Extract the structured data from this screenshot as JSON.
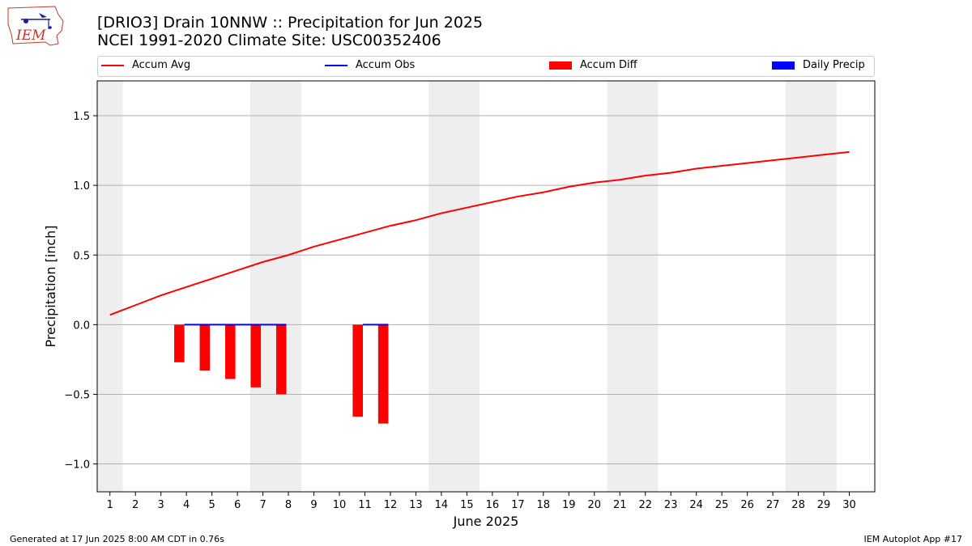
{
  "header": {
    "title_line1": "[DRIO3] Drain 10NNW :: Precipitation for Jun 2025",
    "title_line2": "NCEI 1991-2020 Climate Site: USC00352406"
  },
  "logo": {
    "text": "IEM",
    "icon": "iem-iowa-logo-icon"
  },
  "footer": {
    "generated": "Generated at 17 Jun 2025 8:00 AM CDT in 0.76s",
    "app": "IEM Autoplot App #17"
  },
  "colors": {
    "accum_avg": "#ff0000",
    "accum_obs": "#0000ff",
    "accum_diff": "#ff0000",
    "daily_precip": "#0000ff",
    "weekend_band": "#eeeeee",
    "grid": "#b0b0b0"
  },
  "chart_data": {
    "type": "line",
    "xlabel": "June 2025",
    "ylabel": "Precipitation [inch]",
    "ylim": [
      -1.2,
      1.75
    ],
    "xlim": [
      0.5,
      31.0
    ],
    "yticks": [
      -1.0,
      -0.5,
      0.0,
      0.5,
      1.0,
      1.5
    ],
    "ytick_labels": [
      "−1.0",
      "−0.5",
      "0.0",
      "0.5",
      "1.0",
      "1.5"
    ],
    "xticks": [
      1,
      2,
      3,
      4,
      5,
      6,
      7,
      8,
      9,
      10,
      11,
      12,
      13,
      14,
      15,
      16,
      17,
      18,
      19,
      20,
      21,
      22,
      23,
      24,
      25,
      26,
      27,
      28,
      29,
      30
    ],
    "grid": "horizontal",
    "legend_position": "top",
    "legend": [
      "Accum Avg",
      "Accum Obs",
      "Accum Diff",
      "Daily Precip"
    ],
    "weekend_bands": [
      [
        0.5,
        1.5
      ],
      [
        6.5,
        8.5
      ],
      [
        13.5,
        15.5
      ],
      [
        20.5,
        22.5
      ],
      [
        27.5,
        29.5
      ]
    ],
    "accum_avg": {
      "name": "Accum Avg",
      "days": [
        1,
        2,
        3,
        4,
        5,
        6,
        7,
        8,
        9,
        10,
        11,
        12,
        13,
        14,
        15,
        16,
        17,
        18,
        19,
        20,
        21,
        22,
        23,
        24,
        25,
        26,
        27,
        28,
        29,
        30
      ],
      "values": [
        0.07,
        0.14,
        0.21,
        0.27,
        0.33,
        0.39,
        0.45,
        0.5,
        0.56,
        0.61,
        0.66,
        0.71,
        0.75,
        0.8,
        0.84,
        0.88,
        0.92,
        0.95,
        0.99,
        1.02,
        1.04,
        1.07,
        1.09,
        1.12,
        1.14,
        1.16,
        1.18,
        1.2,
        1.22,
        1.24
      ]
    },
    "accum_obs": {
      "name": "Accum Obs",
      "segments": [
        {
          "days": [
            4,
            5,
            6,
            7,
            8
          ],
          "values": [
            0,
            0,
            0,
            0,
            0
          ]
        },
        {
          "days": [
            11,
            12
          ],
          "values": [
            0,
            0
          ]
        }
      ]
    },
    "accum_diff": {
      "name": "Accum Diff",
      "days": [
        4,
        5,
        6,
        7,
        8,
        11,
        12
      ],
      "values": [
        -0.27,
        -0.33,
        -0.39,
        -0.45,
        -0.5,
        -0.66,
        -0.71
      ]
    },
    "daily_precip": {
      "name": "Daily Precip",
      "days": [],
      "values": []
    }
  }
}
